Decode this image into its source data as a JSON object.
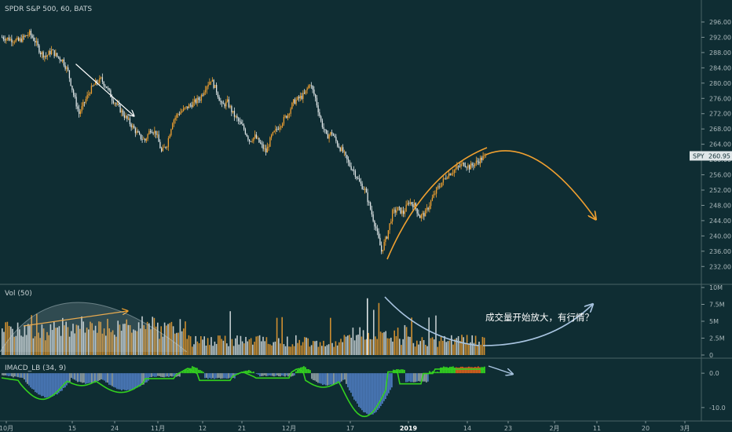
{
  "chart_data": [
    {
      "type": "candlestick",
      "header": "SPDR S&P 500, 60, BATS",
      "ylim": [
        230,
        296
      ],
      "y_ticks": [
        "232.00",
        "236.00",
        "240.00",
        "244.00",
        "248.00",
        "252.00",
        "256.00",
        "260.00",
        "264.00",
        "268.00",
        "272.00",
        "276.00",
        "280.00",
        "284.00",
        "288.00",
        "292.00",
        "296.00"
      ],
      "last_price_label": "SPY",
      "last_price": "260.95",
      "x_ticks": [
        "10月",
        "15",
        "24",
        "11月",
        "12",
        "21",
        "12月",
        "17",
        "2019",
        "14",
        "23",
        "2月",
        "11",
        "20",
        "3月"
      ],
      "price_path": [
        [
          0,
          292
        ],
        [
          3,
          291
        ],
        [
          5,
          293
        ],
        [
          6,
          291
        ],
        [
          7,
          288
        ],
        [
          8,
          287
        ],
        [
          9,
          288.5
        ],
        [
          10,
          287
        ],
        [
          11,
          286
        ],
        [
          12,
          283
        ],
        [
          13,
          277
        ],
        [
          14,
          272
        ],
        [
          15,
          275
        ],
        [
          16,
          278
        ],
        [
          17,
          280
        ],
        [
          18,
          281
        ],
        [
          19,
          279
        ],
        [
          20,
          276
        ],
        [
          21,
          274
        ],
        [
          22,
          272
        ],
        [
          23,
          270
        ],
        [
          24,
          268
        ],
        [
          25,
          266
        ],
        [
          26,
          265
        ],
        [
          27,
          268
        ],
        [
          28,
          267
        ],
        [
          29,
          262
        ],
        [
          30,
          264
        ],
        [
          31,
          270
        ],
        [
          32,
          272
        ],
        [
          33,
          273
        ],
        [
          34,
          274
        ],
        [
          35,
          275
        ],
        [
          36,
          276
        ],
        [
          37,
          279
        ],
        [
          38,
          281
        ],
        [
          39,
          278
        ],
        [
          40,
          274
        ],
        [
          41,
          275
        ],
        [
          42,
          272
        ],
        [
          43,
          270
        ],
        [
          44,
          268
        ],
        [
          45,
          265
        ],
        [
          46,
          266
        ],
        [
          47,
          264
        ],
        [
          48,
          262
        ],
        [
          49,
          266
        ],
        [
          50,
          268
        ],
        [
          51,
          270
        ],
        [
          52,
          272
        ],
        [
          53,
          275
        ],
        [
          54,
          276
        ],
        [
          55,
          277
        ],
        [
          56,
          280
        ],
        [
          57,
          276
        ],
        [
          58,
          270
        ],
        [
          59,
          266
        ],
        [
          60,
          267
        ],
        [
          61,
          264
        ],
        [
          62,
          262
        ],
        [
          63,
          259
        ],
        [
          64,
          257
        ],
        [
          65,
          254
        ],
        [
          66,
          252
        ],
        [
          67,
          247
        ],
        [
          68,
          242
        ],
        [
          69,
          236
        ],
        [
          70,
          240
        ],
        [
          71,
          246
        ],
        [
          72,
          247
        ],
        [
          73,
          246
        ],
        [
          74,
          249
        ],
        [
          75,
          248
        ],
        [
          76,
          245
        ],
        [
          77,
          246
        ],
        [
          78,
          249
        ],
        [
          79,
          252
        ],
        [
          80,
          254
        ],
        [
          81,
          256
        ],
        [
          82,
          257
        ],
        [
          83,
          258
        ],
        [
          84,
          259
        ],
        [
          85,
          258
        ],
        [
          86,
          259
        ],
        [
          87,
          260
        ],
        [
          88,
          261
        ]
      ],
      "annotations": {
        "down_arrow": [
          [
            13.5,
            285
          ],
          [
            24,
            271.5
          ]
        ],
        "forecast_curve": [
          [
            88,
            261.2
          ],
          [
            97,
            258.5
          ],
          [
            108,
            244.5
          ]
        ]
      }
    },
    {
      "type": "bar",
      "name": "Vol (50)",
      "ylim": [
        0,
        10
      ],
      "y_ticks": [
        "0",
        "2.5M",
        "5M",
        "7.5M",
        "10M"
      ],
      "annotation_text": "成交量开始放大，有行情？"
    },
    {
      "type": "histogram",
      "name": "IMACD_LB (34, 9)",
      "ylim": [
        -13,
        3
      ],
      "y_ticks": [
        "0.0",
        "-10.0"
      ]
    }
  ],
  "colors": {
    "background": "#0f2d33",
    "up": "#f0a030",
    "down": "#dfe6e8",
    "arrow_white": "#ffffff",
    "arrow_orange": "#f0a030",
    "arrow_blue": "#a8c4e0",
    "macd_green": "#33d11f",
    "macd_blue": "#4a78b8",
    "macd_orange": "#d5601c",
    "macd_gray": "#8a9aa0"
  }
}
